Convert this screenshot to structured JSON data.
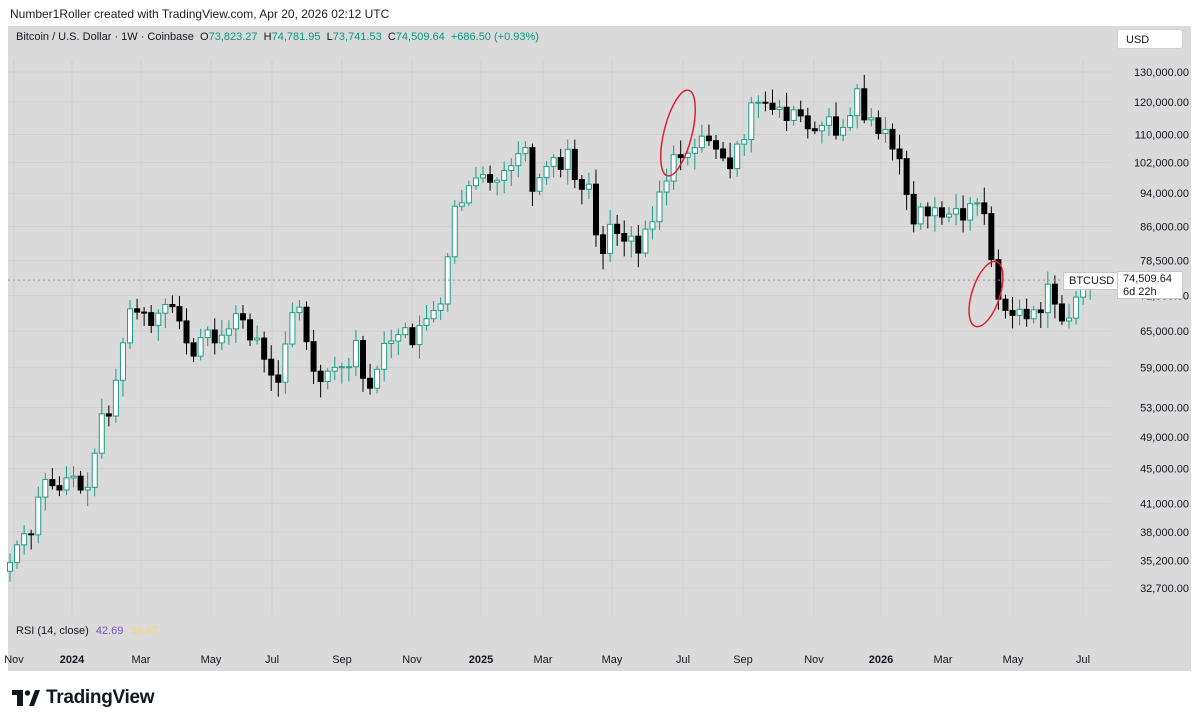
{
  "header": {
    "note": "Number1Roller created with TradingView.com, Apr 20, 2026 02:12 UTC"
  },
  "legend": {
    "title": "Bitcoin / U.S. Dollar · 1W · Coinbase",
    "o_label": "O",
    "o": "73,823.27",
    "h_label": "H",
    "h": "74,781.95",
    "l_label": "L",
    "l": "73,741.53",
    "c_label": "C",
    "c": "74,509.64",
    "change": "+686.50 (+0.93%)"
  },
  "currency_button": "USD",
  "current": {
    "symbol": "BTCUSD",
    "price": "74,509.64",
    "countdown": "6d 22h"
  },
  "rsi": {
    "label": "RSI (14, close)",
    "value": "42.69",
    "ma": "34.67"
  },
  "brand": {
    "name": "TradingView"
  },
  "colors": {
    "up_fill": "#ffffff",
    "up_border": "#1a9e86",
    "down": "#000000",
    "background": "#dadada",
    "highlight": "#e0202f"
  },
  "chart_data": {
    "type": "candlestick",
    "title": "Bitcoin / U.S. Dollar · 1W · Coinbase",
    "y_scale": "log",
    "y_ticks": [
      "130,000.00",
      "120,000.00",
      "110,000.00",
      "102,000.00",
      "94,000.00",
      "86,000.00",
      "78,500.00",
      "71,500.00",
      "65,000.00",
      "59,000.00",
      "53,000.00",
      "49,000.00",
      "45,000.00",
      "41,000.00",
      "38,000.00",
      "35,200.00",
      "32,700.00"
    ],
    "x_ticks": [
      "Nov",
      "2024",
      "Mar",
      "May",
      "Jul",
      "Sep",
      "Nov",
      "2025",
      "Mar",
      "May",
      "Jul",
      "Sep",
      "Nov",
      "2026",
      "Mar",
      "May",
      "Jul"
    ],
    "x_ticks_bold": [
      "2024",
      "2025",
      "2026"
    ],
    "weekly_closes": [
      35000,
      36700,
      37800,
      37700,
      41700,
      43700,
      43000,
      42500,
      43900,
      44100,
      42500,
      42800,
      46900,
      52100,
      51800,
      57000,
      63000,
      69000,
      68400,
      68300,
      66000,
      68200,
      69800,
      69400,
      66800,
      63000,
      60800,
      63900,
      65200,
      63000,
      64300,
      65400,
      68100,
      67000,
      63500,
      63800,
      60300,
      57800,
      56700,
      62800,
      68300,
      69300,
      63200,
      58400,
      56800,
      58400,
      59000,
      59100,
      59100,
      63400,
      57300,
      55800,
      58700,
      62900,
      63300,
      64400,
      65600,
      62700,
      66000,
      67200,
      68700,
      69900,
      79300,
      90800,
      91600,
      95900,
      97900,
      98800,
      96800,
      97300,
      99900,
      101200,
      104500,
      106200,
      94500,
      98000,
      101000,
      103400,
      100200,
      105700,
      97500,
      95000,
      96300,
      84100,
      80000,
      86500,
      84400,
      82700,
      83800,
      80100,
      85400,
      87100,
      94300,
      97100,
      104200,
      103400,
      104600,
      106200,
      109500,
      108200,
      105800,
      103300,
      100400,
      107200,
      108500,
      119700,
      119900,
      119600,
      117600,
      118300,
      114200,
      117500,
      115600,
      111700,
      111100,
      112700,
      115300,
      109800,
      112100,
      115700,
      124300,
      114400,
      115000,
      110300,
      111500,
      105800,
      103100,
      93700,
      86600,
      90600,
      88500,
      90400,
      88200,
      88900,
      90200,
      87500,
      91400,
      91600,
      89000,
      78700,
      70800,
      68700,
      67800,
      68900,
      67200,
      68800,
      68300,
      73700,
      69900,
      66800,
      67300,
      71200,
      73800,
      74500
    ]
  }
}
